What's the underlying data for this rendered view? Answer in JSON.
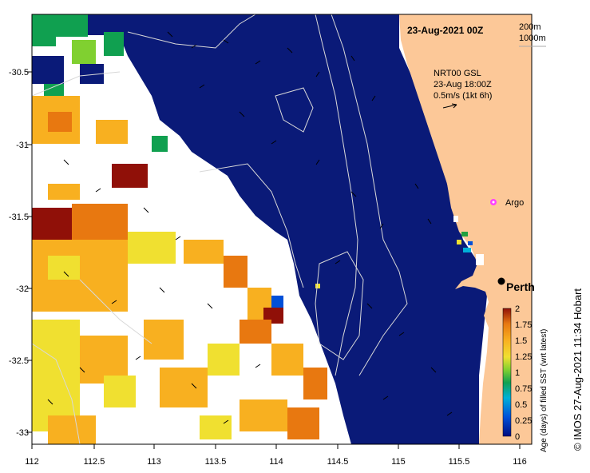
{
  "map": {
    "date_title": "23-Aug-2021 00Z",
    "contour_labels": [
      "200m",
      "1000m"
    ],
    "current_info": [
      "NRT00 GSL",
      "23-Aug 18:00Z",
      "0.5m/s (1kt 6h)"
    ],
    "x_ticks": [
      "112",
      "112.5",
      "113",
      "113.5",
      "114",
      "114.5",
      "115",
      "115.5",
      "116"
    ],
    "y_ticks": [
      "-30.5",
      "-31",
      "-31.5",
      "-32",
      "-32.5",
      "-33"
    ],
    "markers": [
      {
        "label": "Argo",
        "type": "float"
      },
      {
        "label": "Perth",
        "type": "city"
      }
    ],
    "colorbar": {
      "ticks": [
        "2",
        "1.75",
        "1.5",
        "1.25",
        "1",
        "0.75",
        "0.5",
        "0.25",
        "0"
      ],
      "label": "Age (days) of filled SST (wrt latest)"
    },
    "credit": "© IMOS 27-Aug-2021 11:34 Hobart",
    "colors": {
      "ocean": "#0a1a78",
      "land": "#fcc898",
      "no_data": "#ffffff"
    }
  }
}
